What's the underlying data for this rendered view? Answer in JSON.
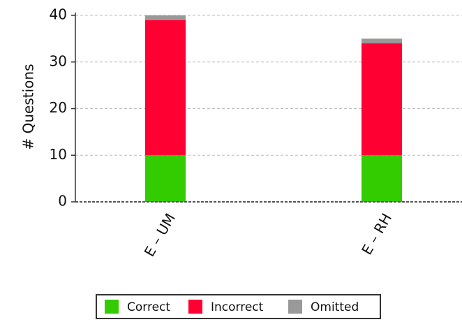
{
  "chart_data": {
    "type": "bar",
    "stacked": true,
    "title": "",
    "xlabel": "",
    "ylabel": "# Questions",
    "categories": [
      "E – UM",
      "E – RH"
    ],
    "ylim": [
      0,
      40
    ],
    "yticks": [
      0,
      10,
      20,
      30,
      40
    ],
    "grid": true,
    "legend_position": "bottom",
    "series": [
      {
        "name": "Correct",
        "color": "#33cc00",
        "values": [
          10,
          10
        ]
      },
      {
        "name": "Incorrect",
        "color": "#ff0033",
        "values": [
          29,
          24
        ]
      },
      {
        "name": "Omitted",
        "color": "#999999",
        "values": [
          1,
          1
        ]
      }
    ]
  }
}
